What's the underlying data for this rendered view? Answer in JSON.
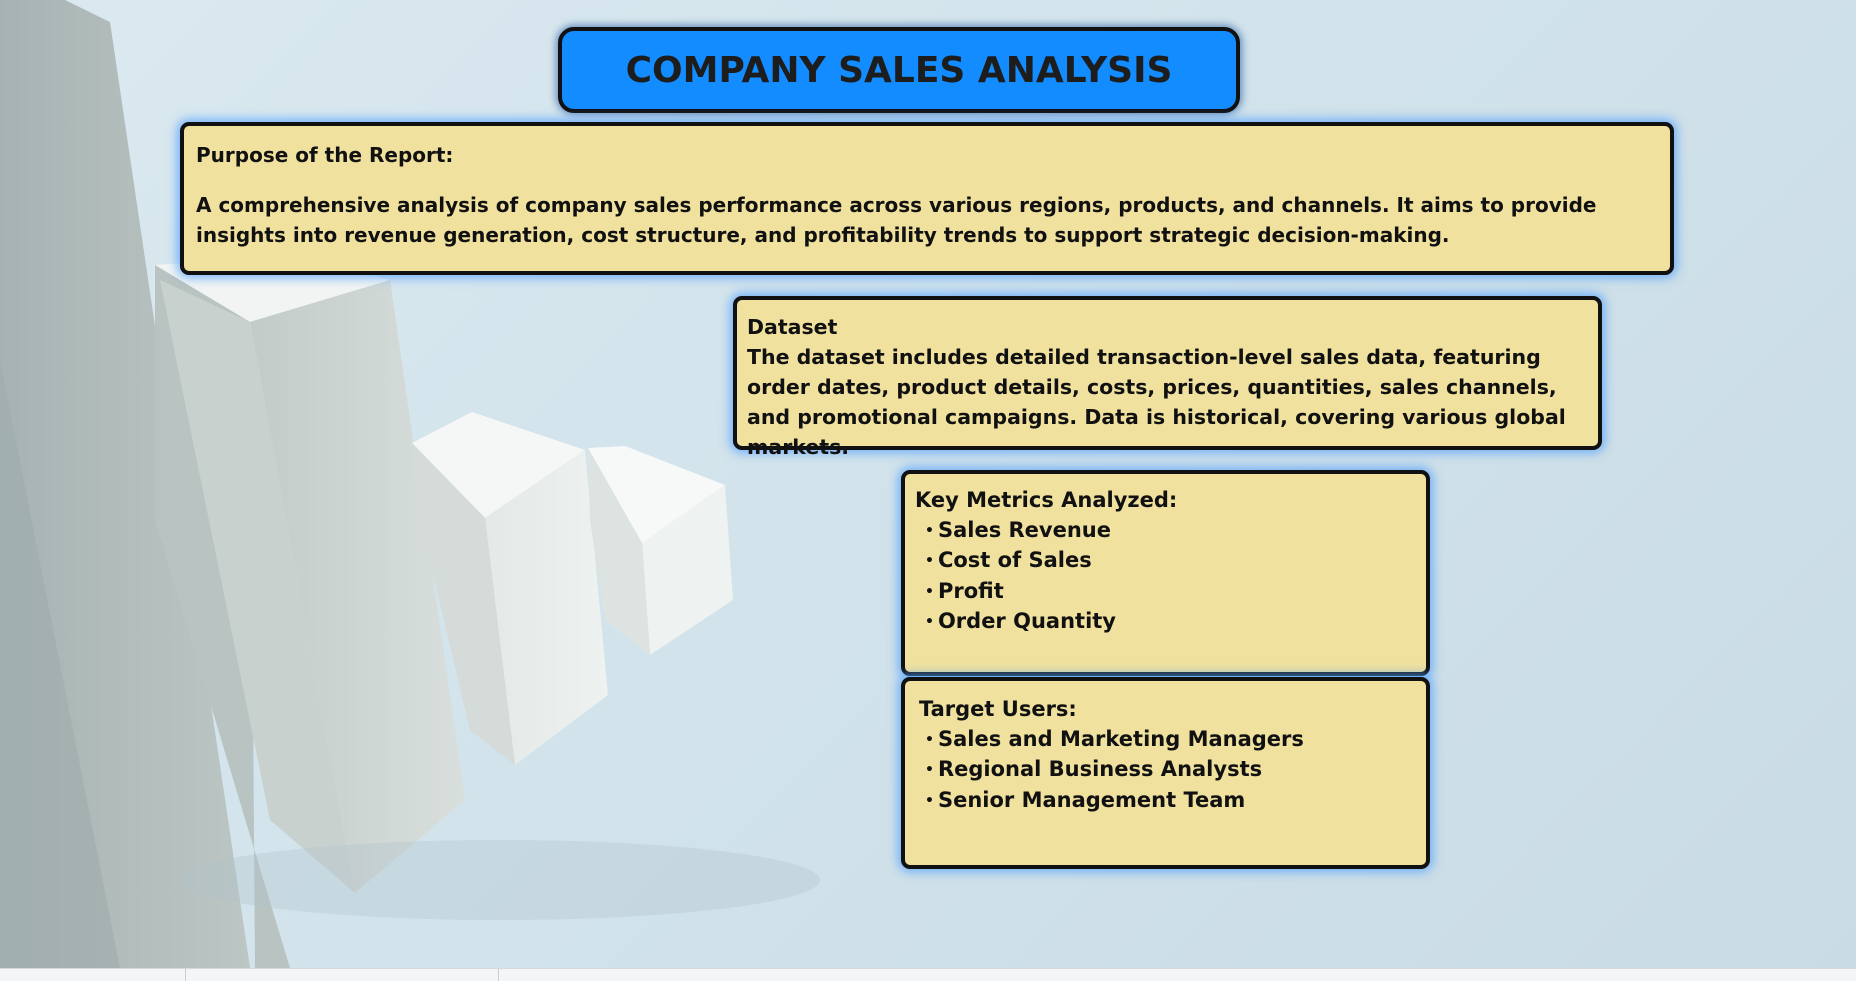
{
  "title": "COMPANY SALES ANALYSIS",
  "purpose": {
    "heading": "Purpose of the Report:",
    "body": "A comprehensive analysis of company sales performance across various regions, products, and channels. It aims to provide insights into revenue generation, cost structure, and profitability trends to support strategic decision-making."
  },
  "dataset": {
    "heading": "Dataset",
    "body": "The dataset includes detailed transaction-level sales data, featuring order dates, product details, costs, prices, quantities, sales channels, and promotional campaigns. Data is historical, covering various global markets."
  },
  "metrics": {
    "heading": "Key Metrics Analyzed:",
    "items": [
      "Sales Revenue",
      "Cost of Sales",
      "Profit",
      "Order Quantity"
    ]
  },
  "users": {
    "heading": "Target Users:",
    "items": [
      "Sales and Marketing Managers",
      "Regional Business Analysts",
      "Senior Management Team"
    ]
  },
  "colors": {
    "title_bg": "#128cff",
    "box_bg": "#f0e19f",
    "border": "#111111",
    "glow": "#50a0ff"
  }
}
